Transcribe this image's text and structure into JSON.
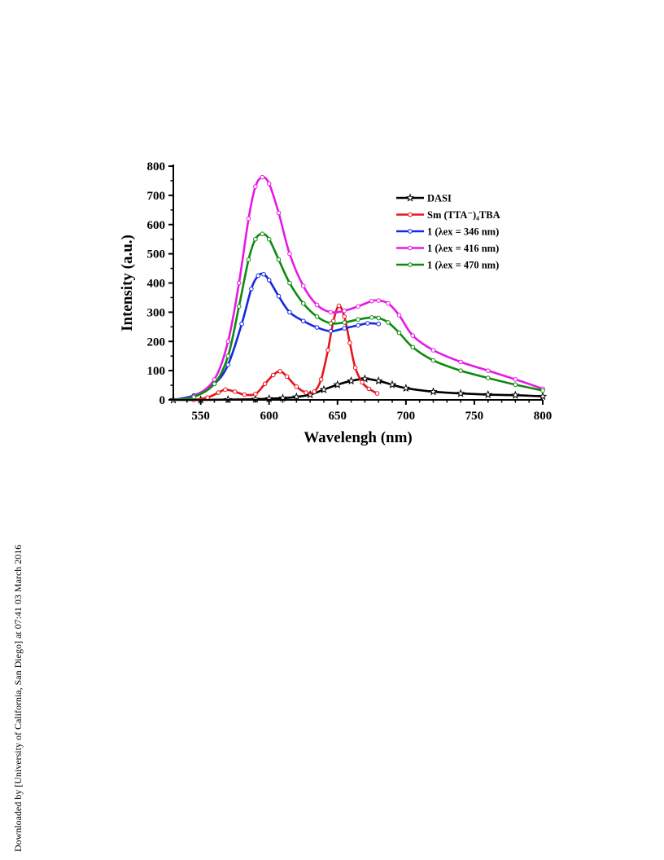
{
  "sidebar_note": "Downloaded by [University of California, San Diego] at 07:41 03 March 2016",
  "chart_data": {
    "type": "line",
    "title": "",
    "xlabel": "Wavelengh (nm)",
    "ylabel": "Intensity (a.u.)",
    "xlim": [
      530,
      800
    ],
    "ylim": [
      0,
      800
    ],
    "xticks": [
      550,
      600,
      650,
      700,
      750,
      800
    ],
    "yticks": [
      0,
      100,
      200,
      300,
      400,
      500,
      600,
      700,
      800
    ],
    "grid": false,
    "legend_position": "top-right",
    "series": [
      {
        "name": "DASI",
        "color": "#000000",
        "marker": "star",
        "x": [
          530,
          550,
          570,
          590,
          600,
          610,
          620,
          630,
          640,
          650,
          660,
          670,
          680,
          690,
          700,
          720,
          740,
          760,
          780,
          800
        ],
        "y": [
          0,
          0,
          1,
          2,
          4,
          6,
          10,
          18,
          35,
          52,
          65,
          72,
          65,
          52,
          40,
          28,
          22,
          18,
          16,
          12
        ]
      },
      {
        "name": "Sm (TTA⁻)₄TBA",
        "color": "#e8141b",
        "marker": "circle",
        "x": [
          545,
          555,
          563,
          568,
          575,
          582,
          590,
          597,
          603,
          608,
          613,
          620,
          627,
          633,
          638,
          643,
          647,
          651,
          655,
          659,
          663,
          668,
          673,
          679
        ],
        "y": [
          0,
          8,
          25,
          35,
          28,
          18,
          20,
          55,
          85,
          98,
          80,
          45,
          25,
          28,
          70,
          170,
          270,
          322,
          285,
          195,
          110,
          60,
          38,
          22
        ]
      },
      {
        "name": "1 (λex = 346 nm)",
        "color": "#1428e0",
        "marker": "circle",
        "x": [
          530,
          545,
          560,
          570,
          580,
          587,
          592,
          596,
          600,
          607,
          615,
          625,
          635,
          645,
          655,
          665,
          672,
          680
        ],
        "y": [
          0,
          15,
          55,
          120,
          260,
          380,
          425,
          430,
          410,
          355,
          300,
          270,
          248,
          235,
          245,
          255,
          262,
          260
        ]
      },
      {
        "name": "1 (λex = 416 nm)",
        "color": "#e619e6",
        "marker": "circle",
        "x": [
          530,
          545,
          560,
          570,
          578,
          585,
          590,
          595,
          600,
          607,
          615,
          625,
          635,
          645,
          655,
          665,
          675,
          680,
          687,
          695,
          705,
          720,
          740,
          760,
          780,
          800
        ],
        "y": [
          0,
          12,
          70,
          200,
          400,
          620,
          730,
          762,
          740,
          640,
          500,
          390,
          325,
          300,
          305,
          320,
          338,
          340,
          330,
          290,
          220,
          170,
          130,
          100,
          70,
          38
        ]
      },
      {
        "name": "1 (λex = 470 nm)",
        "color": "#0f8a0f",
        "marker": "circle",
        "x": [
          530,
          545,
          560,
          570,
          578,
          585,
          590,
          595,
          600,
          607,
          615,
          625,
          635,
          645,
          655,
          665,
          675,
          680,
          687,
          695,
          705,
          720,
          740,
          760,
          780,
          800
        ],
        "y": [
          0,
          10,
          55,
          150,
          320,
          480,
          550,
          568,
          550,
          480,
          400,
          330,
          285,
          262,
          265,
          275,
          282,
          280,
          265,
          230,
          180,
          135,
          100,
          75,
          52,
          32
        ]
      }
    ]
  }
}
